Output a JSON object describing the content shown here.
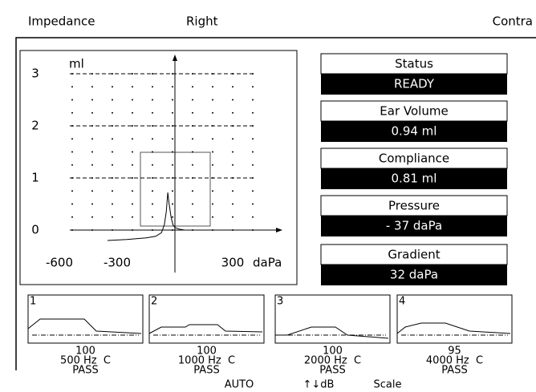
{
  "header": {
    "title": "Impedance",
    "ear": "Right",
    "mode": "Contra"
  },
  "tympanogram": {
    "y_unit": "ml",
    "x_unit": "daPa",
    "yticks": [
      0,
      1,
      2,
      3
    ],
    "xticks": [
      -600,
      -300,
      300
    ],
    "curve": {
      "x": [
        -350,
        -250,
        -150,
        -100,
        -70,
        -55,
        -45,
        -37,
        -30,
        -20,
        -10,
        0,
        20,
        50
      ],
      "y": [
        -0.2,
        -0.18,
        -0.15,
        -0.12,
        -0.05,
        0.1,
        0.35,
        0.72,
        0.5,
        0.25,
        0.1,
        0.05,
        0.02,
        0
      ]
    }
  },
  "results": [
    {
      "label": "Status",
      "value": "READY"
    },
    {
      "label": "Ear Volume",
      "value": "0.94 ml"
    },
    {
      "label": "Compliance",
      "value": "0.81 ml"
    },
    {
      "label": "Pressure",
      "value": "- 37 daPa"
    },
    {
      "label": "Gradient",
      "value": "32 daPa"
    }
  ],
  "reflexes": [
    {
      "index": "1",
      "level": "100",
      "frequency": "500 Hz  C",
      "result": "PASS"
    },
    {
      "index": "2",
      "level": "100",
      "frequency": "1000 Hz  C",
      "result": "PASS"
    },
    {
      "index": "3",
      "level": "100",
      "frequency": "2000 Hz  C",
      "result": "PASS"
    },
    {
      "index": "4",
      "level": "95",
      "frequency": "4000 Hz  C",
      "result": "PASS"
    }
  ],
  "footer": [
    "AUTO",
    "↑↓dB",
    "Scale"
  ]
}
